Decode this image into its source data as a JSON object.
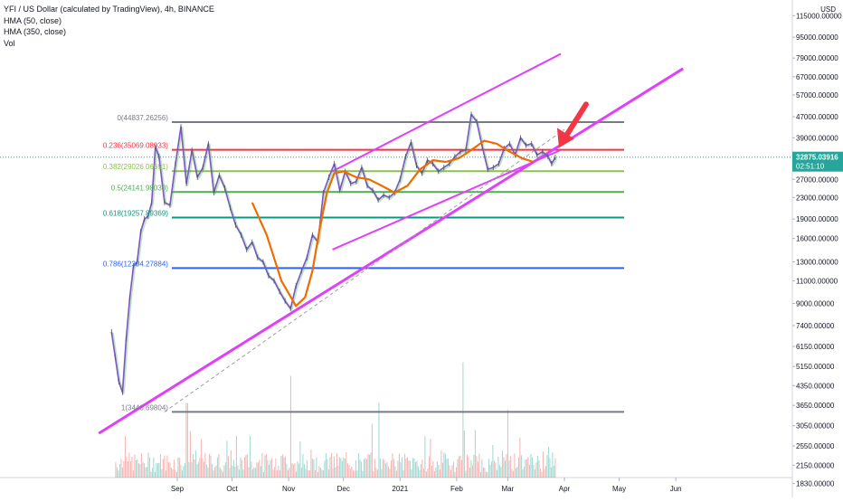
{
  "legend": {
    "title": "YFI / US Dollar (calculated by TradingView), 4h, BINANCE",
    "hma50": "HMA (50, close)",
    "hma350": "HMA (350, close)",
    "vol": "Vol"
  },
  "chart_data": {
    "type": "line",
    "title": "YFI / US Dollar (calculated by TradingView), 4h, BINANCE",
    "xlabel": "",
    "ylabel": "",
    "y_scale": "log",
    "currency_label": "USD",
    "ylim": [
      1750,
      130000
    ],
    "x_axis_labels": [
      "Sep",
      "Oct",
      "Nov",
      "Dec",
      "2021",
      "Feb",
      "Mar",
      "Apr",
      "May",
      "Jun"
    ],
    "x_axis_dates": [
      "2020-09-01",
      "2020-10-01",
      "2020-11-01",
      "2020-12-01",
      "2021-01-01",
      "2021-02-01",
      "2021-03-01",
      "2021-04-01",
      "2021-05-01",
      "2021-06-01"
    ],
    "y_tick_labels": [
      "115000.00000",
      "95000.00000",
      "79000.00000",
      "67000.00000",
      "57000.00000",
      "47000.00000",
      "39000.00000",
      "27000.00000",
      "23000.00000",
      "19000.00000",
      "16000.00000",
      "13000.00000",
      "11000.00000",
      "9000.00000",
      "7400.00000",
      "6150.00000",
      "5150.00000",
      "4350.00000",
      "3650.00000",
      "3050.00000",
      "2550.00000",
      "2150.00000",
      "1830.00000"
    ],
    "y_tick_values": [
      115000,
      95000,
      79000,
      67000,
      57000,
      47000,
      39000,
      27000,
      23000,
      19000,
      16000,
      13000,
      11000,
      9000,
      7400,
      6150,
      5150,
      4350,
      3650,
      3050,
      2550,
      2150,
      1830
    ],
    "current_price": {
      "label": "32875.03916",
      "countdown": "02:51:10",
      "value": 32875.03916,
      "color": "#26a69a"
    },
    "fib_levels": [
      {
        "label": "0(44837.26256)",
        "value": 44837.26256,
        "color": "#787b86"
      },
      {
        "label": "0.236(35069.08933)",
        "value": 35069.08933,
        "color": "#f23645"
      },
      {
        "label": "0.382(29026.06691)",
        "value": 29026.06691,
        "color": "#8bc34a"
      },
      {
        "label": "0.5(24141.98030)",
        "value": 24141.9803,
        "color": "#4caf50"
      },
      {
        "label": "0.618(19257.89369)",
        "value": 19257.89369,
        "color": "#089981"
      },
      {
        "label": "0.786(12304.27884)",
        "value": 12304.27884,
        "color": "#2962ff"
      },
      {
        "label": "1(3446.69804)",
        "value": 3446.69804,
        "color": "#787b86"
      }
    ],
    "fib_start": "2020-08-29",
    "fib_end": "2021-04-01",
    "price_series": {
      "name": "",
      "color": "#7e57c2",
      "x": [
        "2020-07-27",
        "2020-07-29",
        "2020-07-31",
        "2020-08-02",
        "2020-08-04",
        "2020-08-06",
        "2020-08-08",
        "2020-08-10",
        "2020-08-12",
        "2020-08-14",
        "2020-08-16",
        "2020-08-18",
        "2020-08-20",
        "2020-08-22",
        "2020-08-25",
        "2020-08-28",
        "2020-08-31",
        "2020-09-03",
        "2020-09-06",
        "2020-09-09",
        "2020-09-12",
        "2020-09-15",
        "2020-09-18",
        "2020-09-21",
        "2020-09-24",
        "2020-09-27",
        "2020-09-30",
        "2020-10-03",
        "2020-10-06",
        "2020-10-09",
        "2020-10-12",
        "2020-10-15",
        "2020-10-18",
        "2020-10-21",
        "2020-10-24",
        "2020-10-27",
        "2020-10-30",
        "2020-11-02",
        "2020-11-05",
        "2020-11-08",
        "2020-11-11",
        "2020-11-14",
        "2020-11-17",
        "2020-11-20",
        "2020-11-23",
        "2020-11-26",
        "2020-11-29",
        "2020-12-02",
        "2020-12-05",
        "2020-12-08",
        "2020-12-11",
        "2020-12-14",
        "2020-12-17",
        "2020-12-20",
        "2020-12-23",
        "2020-12-26",
        "2020-12-29",
        "2021-01-01",
        "2021-01-04",
        "2021-01-07",
        "2021-01-10",
        "2021-01-13",
        "2021-01-16",
        "2021-01-19",
        "2021-01-22",
        "2021-01-25",
        "2021-01-28",
        "2021-01-31",
        "2021-02-03",
        "2021-02-06",
        "2021-02-09",
        "2021-02-12",
        "2021-02-15",
        "2021-02-18",
        "2021-02-21",
        "2021-02-24",
        "2021-02-27",
        "2021-03-02",
        "2021-03-05",
        "2021-03-08",
        "2021-03-11",
        "2021-03-14",
        "2021-03-17",
        "2021-03-20",
        "2021-03-23",
        "2021-03-25",
        "2021-03-27"
      ],
      "values": [
        7000,
        5600,
        4500,
        4100,
        6600,
        9500,
        12500,
        13000,
        17000,
        19000,
        19500,
        22000,
        36000,
        33000,
        22000,
        21500,
        31000,
        43000,
        26000,
        35000,
        27500,
        30000,
        37000,
        24000,
        28000,
        25000,
        21000,
        18000,
        16500,
        14500,
        15500,
        13500,
        13000,
        11500,
        11000,
        10000,
        9200,
        8600,
        10500,
        12000,
        13500,
        16500,
        15500,
        24000,
        27500,
        31000,
        24500,
        29000,
        26000,
        26500,
        30000,
        25500,
        24500,
        22500,
        23500,
        23000,
        24000,
        27000,
        33000,
        37500,
        30500,
        28500,
        32000,
        31000,
        29000,
        30000,
        31000,
        33000,
        34500,
        35000,
        48000,
        45000,
        36000,
        29500,
        30000,
        31000,
        35500,
        37000,
        33500,
        39000,
        36500,
        37000,
        33500,
        34500,
        33000,
        31000,
        32875
      ]
    },
    "hma50_series": {
      "name": "HMA (50, close)",
      "color": "#ef6c00",
      "x": [
        "2020-10-12",
        "2020-10-20",
        "2020-10-28",
        "2020-11-05",
        "2020-11-10",
        "2020-11-14",
        "2020-11-18",
        "2020-11-22",
        "2020-11-26",
        "2020-12-01",
        "2020-12-08",
        "2020-12-15",
        "2020-12-22",
        "2020-12-29",
        "2021-01-05",
        "2021-01-12",
        "2021-01-19",
        "2021-01-26",
        "2021-02-02",
        "2021-02-09",
        "2021-02-16",
        "2021-02-23",
        "2021-03-02",
        "2021-03-09",
        "2021-03-15"
      ],
      "values": [
        22000,
        16500,
        11000,
        8800,
        9500,
        12000,
        17500,
        24000,
        28500,
        29000,
        27500,
        27000,
        25500,
        24000,
        25500,
        29500,
        32000,
        31500,
        32500,
        35000,
        38000,
        37000,
        34500,
        32500,
        31500
      ]
    },
    "hma350_series": {
      "name": "HMA (350, close)",
      "color": "#ef6c00",
      "x": [],
      "values": []
    },
    "volume": {
      "name": "Vol",
      "up_color": "#26a69a",
      "down_color": "#ef5350",
      "spikes": [
        {
          "x": "2020-09-06",
          "value": 0.55
        },
        {
          "x": "2020-11-02",
          "value": 0.75
        },
        {
          "x": "2020-12-20",
          "value": 0.55
        },
        {
          "x": "2021-02-04",
          "value": 0.85
        },
        {
          "x": "2021-03-01",
          "value": 0.5
        }
      ]
    },
    "trendlines": [
      {
        "name": "channel-upper",
        "color": "#e040fb",
        "points": [
          {
            "x": "2020-11-25",
            "y": 29000
          },
          {
            "x": "2021-03-30",
            "y": 82000
          }
        ]
      },
      {
        "name": "channel-lower",
        "color": "#e040fb",
        "points": [
          {
            "x": "2020-11-25",
            "y": 14500
          },
          {
            "x": "2021-03-30",
            "y": 35000
          }
        ]
      },
      {
        "name": "main-support",
        "color": "#e040fb",
        "points": [
          {
            "x": "2020-07-20",
            "y": 2850
          },
          {
            "x": "2021-06-05",
            "y": 72000
          }
        ]
      },
      {
        "name": "dashed-support",
        "color": "#9e9e9e",
        "points": [
          {
            "x": "2020-08-25",
            "y": 3446.69804
          },
          {
            "x": "2021-04-01",
            "y": 42000
          }
        ]
      }
    ],
    "arrow": {
      "color": "#f23645",
      "direction": "down-left",
      "target": {
        "x": "2021-03-28",
        "y": 33500
      }
    },
    "grid": false,
    "legend_position": "top-left"
  }
}
